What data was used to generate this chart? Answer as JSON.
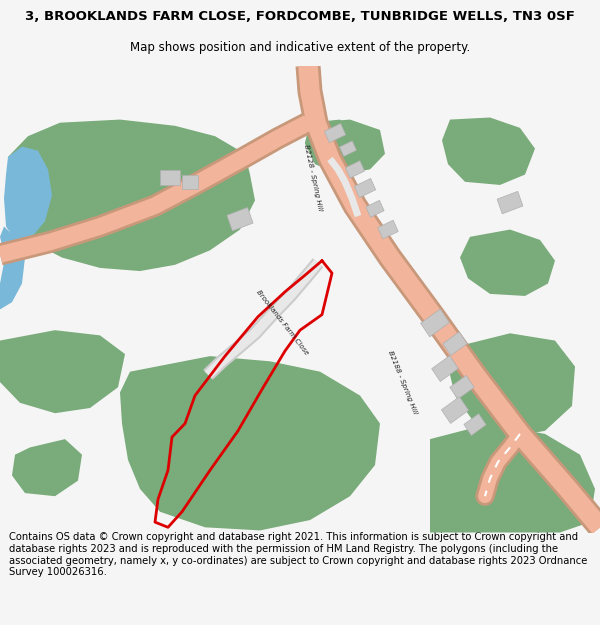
{
  "title_line1": "3, BROOKLANDS FARM CLOSE, FORDCOMBE, TUNBRIDGE WELLS, TN3 0SF",
  "title_line2": "Map shows position and indicative extent of the property.",
  "footer": "Contains OS data © Crown copyright and database right 2021. This information is subject to Crown copyright and database rights 2023 and is reproduced with the permission of HM Land Registry. The polygons (including the associated geometry, namely x, y co-ordinates) are subject to Crown copyright and database rights 2023 Ordnance Survey 100026316.",
  "bg_color": "#f5f5f5",
  "map_bg": "#ffffff",
  "green_color": "#7aab7a",
  "road_color": "#f2b49a",
  "road_edge_color": "#c8987a",
  "minor_road_color": "#e8e8e8",
  "minor_road_edge": "#cccccc",
  "water_color": "#7ab8d9",
  "building_color": "#c8c8c8",
  "building_edge": "#b0b0b0",
  "plot_outline_color": "#dd0000",
  "title_fontsize": 9.5,
  "subtitle_fontsize": 8.5,
  "footer_fontsize": 7.2
}
